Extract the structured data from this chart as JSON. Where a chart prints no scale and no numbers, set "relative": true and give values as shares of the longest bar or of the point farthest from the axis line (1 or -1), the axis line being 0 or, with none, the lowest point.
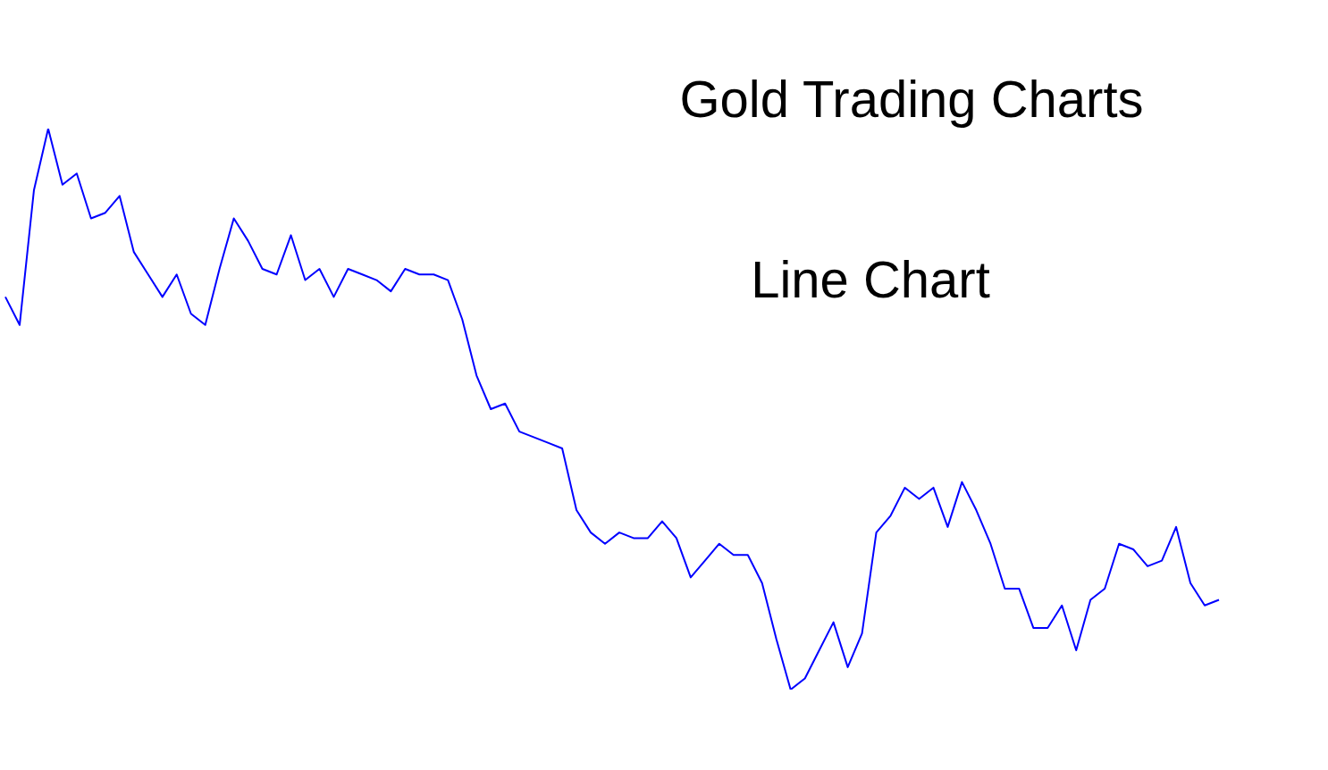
{
  "chart_data": {
    "type": "line",
    "title": "Gold Trading Charts",
    "subtitle": "Line Chart",
    "relative": true,
    "grid": false,
    "legend": false,
    "categories": [
      null,
      null,
      null,
      null,
      null,
      null,
      null,
      null,
      null,
      null,
      null,
      null,
      null,
      null,
      null,
      null,
      null,
      null,
      null,
      null,
      null,
      null,
      null,
      null,
      null,
      null,
      null,
      null,
      null,
      null,
      null,
      null,
      null,
      null,
      null,
      null,
      null,
      null,
      null,
      null,
      null,
      null,
      null,
      null,
      null,
      null,
      null,
      null,
      null,
      null,
      null,
      null,
      null,
      null,
      null,
      null,
      null,
      null,
      null,
      null,
      null,
      null,
      null,
      null,
      null,
      null,
      null,
      null,
      null,
      null,
      null,
      null,
      null,
      null,
      null,
      null,
      null,
      null,
      null,
      null,
      null,
      null,
      null,
      null,
      null,
      null
    ],
    "series": [
      {
        "color": "#0000ff",
        "values": [
          0.7,
          0.65,
          0.89,
          1,
          0.9,
          0.92,
          0.84,
          0.85,
          0.88,
          0.78,
          0.74,
          0.7,
          0.74,
          0.67,
          0.65,
          0.75,
          0.84,
          0.8,
          0.75,
          0.74,
          0.81,
          0.73,
          0.75,
          0.7,
          0.75,
          0.74,
          0.73,
          0.71,
          0.75,
          0.74,
          0.74,
          0.73,
          0.66,
          0.56,
          0.5,
          0.51,
          0.46,
          0.45,
          0.44,
          0.43,
          0.32,
          0.28,
          0.26,
          0.28,
          0.27,
          0.27,
          0.3,
          0.27,
          0.2,
          0.23,
          0.26,
          0.24,
          0.24,
          0.19,
          0.09,
          0,
          0.02,
          0.07,
          0.12,
          0.04,
          0.1,
          0.28,
          0.31,
          0.36,
          0.34,
          0.36,
          0.29,
          0.37,
          0.32,
          0.26,
          0.18,
          0.18,
          0.11,
          0.11,
          0.15,
          0.07,
          0.16,
          0.18,
          0.26,
          0.25,
          0.22,
          0.23,
          0.29,
          0.19,
          0.15,
          0.16
        ]
      }
    ]
  }
}
